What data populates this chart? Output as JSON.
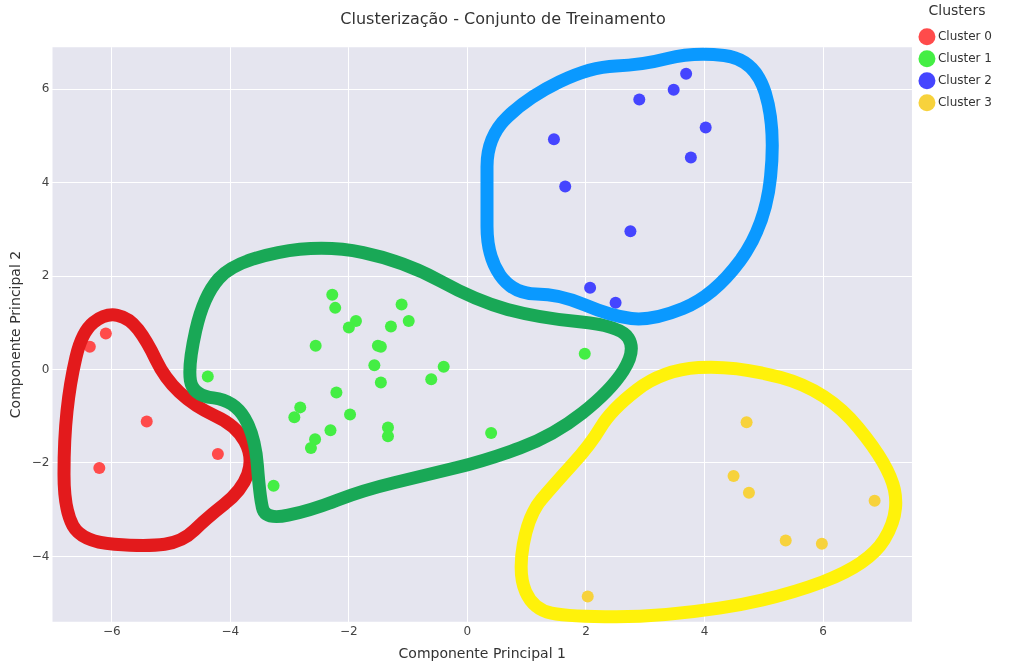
{
  "chart_data": {
    "type": "scatter",
    "title": "Clusterização - Conjunto de Treinamento",
    "xlabel": "Componente Principal 1",
    "ylabel": "Componente Principal 2",
    "legend_title": "Clusters",
    "xlim": [
      -7.0,
      7.5
    ],
    "ylim": [
      -5.4,
      6.9
    ],
    "xticks": [
      {
        "value": -6,
        "label": "−6"
      },
      {
        "value": -4,
        "label": "−4"
      },
      {
        "value": -2,
        "label": "−2"
      },
      0,
      2,
      4,
      6
    ],
    "yticks": [
      {
        "value": -4,
        "label": "−4"
      },
      {
        "value": -2,
        "label": "−2"
      },
      0,
      2,
      4,
      6
    ],
    "grid": true,
    "legend": "top right",
    "marker": "circle",
    "series": [
      {
        "name": "Cluster 0",
        "color": "#ff4b4b",
        "x": [
          -6.37,
          -6.1,
          -5.41,
          -6.21,
          -4.21
        ],
        "values": [
          0.49,
          0.77,
          -1.11,
          -2.11,
          -1.81
        ]
      },
      {
        "name": "Cluster 1",
        "color": "#44ee44",
        "x": [
          -4.38,
          -3.27,
          -2.28,
          -2.23,
          -1.88,
          -2.0,
          -1.11,
          -0.99,
          -1.29,
          -2.56,
          -1.51,
          -1.46,
          -1.57,
          -0.4,
          -1.46,
          -0.61,
          -2.21,
          -2.82,
          -2.92,
          -1.98,
          -2.31,
          -1.34,
          -1.34,
          -2.57,
          -2.64,
          0.4,
          1.98
        ],
        "values": [
          -0.15,
          -2.49,
          1.6,
          1.32,
          1.04,
          0.9,
          1.39,
          1.04,
          0.92,
          0.51,
          0.51,
          0.49,
          0.09,
          0.06,
          -0.28,
          -0.21,
          -0.49,
          -0.81,
          -1.02,
          -0.96,
          -1.3,
          -1.24,
          -1.43,
          -1.49,
          -1.68,
          -1.36,
          0.34
        ]
      },
      {
        "name": "Cluster 2",
        "color": "#4545ff",
        "x": [
          3.69,
          3.48,
          2.9,
          4.02,
          1.46,
          3.77,
          1.65,
          2.75,
          2.07,
          2.5
        ],
        "values": [
          6.33,
          5.99,
          5.78,
          5.18,
          4.93,
          4.54,
          3.92,
          2.96,
          1.75,
          1.43
        ]
      },
      {
        "name": "Cluster 3",
        "color": "#f7d23c",
        "x": [
          4.71,
          4.49,
          4.75,
          6.87,
          5.37,
          5.98,
          2.03
        ],
        "values": [
          -1.13,
          -2.28,
          -2.64,
          -2.81,
          -3.66,
          -3.73,
          -4.86
        ]
      }
    ]
  }
}
